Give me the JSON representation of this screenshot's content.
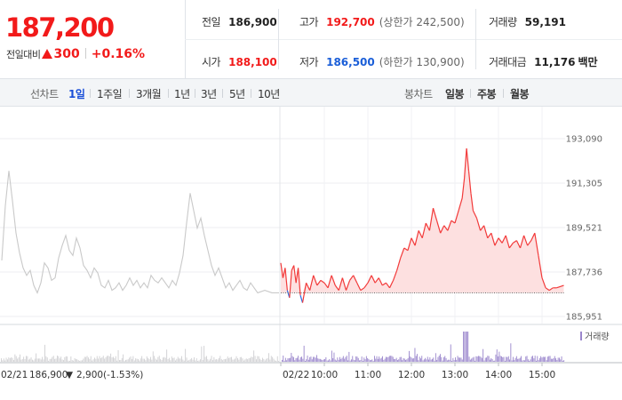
{
  "summary": {
    "current_price": "187,200",
    "change_label": "전일대비",
    "change_abs": "300",
    "change_pct": "+0.16%",
    "prev_close": {
      "label": "전일",
      "value": "186,900"
    },
    "high": {
      "label": "고가",
      "value": "192,700",
      "limit": "(상한가 242,500)"
    },
    "volume": {
      "label": "거래량",
      "value": "59,191"
    },
    "open": {
      "label": "시가",
      "value": "188,100"
    },
    "low": {
      "label": "저가",
      "value": "186,500",
      "limit": "(하한가 130,900)"
    },
    "amount": {
      "label": "거래대금",
      "value": "11,176",
      "unit": "백만"
    }
  },
  "tabs": {
    "line_label": "선차트",
    "line_periods": [
      "1일",
      "1주일",
      "3개월",
      "1년",
      "3년",
      "5년",
      "10년"
    ],
    "selected_index": 0,
    "candle_label": "봉차트",
    "candle_periods": [
      "일봉",
      "주봉",
      "월봉"
    ]
  },
  "chart_data": {
    "type": "line",
    "y_ticks": [
      "193,090",
      "191,305",
      "189,521",
      "187,736",
      "185,951"
    ],
    "ylim": [
      185951,
      193090
    ],
    "prev_close": 186900,
    "x_ticks_today": [
      "02/22",
      "10:00",
      "11:00",
      "12:00",
      "13:00",
      "14:00",
      "15:00"
    ],
    "prev_day": {
      "date": "02/21",
      "close_text": "186,900",
      "change_text": "2,900",
      "pct_text": "(-1.53%)",
      "time_start": "09:00",
      "time_end": "15:30",
      "points": [
        [
          "09:00",
          188200
        ],
        [
          "09:05",
          190400
        ],
        [
          "09:10",
          191800
        ],
        [
          "09:15",
          190600
        ],
        [
          "09:20",
          189300
        ],
        [
          "09:25",
          188500
        ],
        [
          "09:30",
          187900
        ],
        [
          "09:35",
          187600
        ],
        [
          "09:40",
          187800
        ],
        [
          "09:45",
          187200
        ],
        [
          "09:50",
          186900
        ],
        [
          "09:55",
          187300
        ],
        [
          "10:00",
          188100
        ],
        [
          "10:05",
          187900
        ],
        [
          "10:10",
          187400
        ],
        [
          "10:15",
          187500
        ],
        [
          "10:20",
          188300
        ],
        [
          "10:25",
          188800
        ],
        [
          "10:30",
          189200
        ],
        [
          "10:35",
          188600
        ],
        [
          "10:40",
          188400
        ],
        [
          "10:45",
          189100
        ],
        [
          "10:50",
          188700
        ],
        [
          "10:55",
          188000
        ],
        [
          "11:00",
          187800
        ],
        [
          "11:05",
          187500
        ],
        [
          "11:10",
          187900
        ],
        [
          "11:15",
          187700
        ],
        [
          "11:20",
          187200
        ],
        [
          "11:25",
          187100
        ],
        [
          "11:30",
          187400
        ],
        [
          "11:35",
          187000
        ],
        [
          "11:40",
          187100
        ],
        [
          "11:45",
          187300
        ],
        [
          "11:50",
          187000
        ],
        [
          "11:55",
          187200
        ],
        [
          "12:00",
          187500
        ],
        [
          "12:05",
          187200
        ],
        [
          "12:10",
          187400
        ],
        [
          "12:15",
          187100
        ],
        [
          "12:20",
          187300
        ],
        [
          "12:25",
          187100
        ],
        [
          "12:30",
          187600
        ],
        [
          "12:35",
          187400
        ],
        [
          "12:40",
          187300
        ],
        [
          "12:45",
          187500
        ],
        [
          "12:50",
          187300
        ],
        [
          "12:55",
          187100
        ],
        [
          "13:00",
          187400
        ],
        [
          "13:05",
          187200
        ],
        [
          "13:10",
          187700
        ],
        [
          "13:15",
          188400
        ],
        [
          "13:20",
          189700
        ],
        [
          "13:25",
          190900
        ],
        [
          "13:30",
          190200
        ],
        [
          "13:35",
          189500
        ],
        [
          "13:40",
          189900
        ],
        [
          "13:45",
          189200
        ],
        [
          "13:50",
          188600
        ],
        [
          "13:55",
          188000
        ],
        [
          "14:00",
          187600
        ],
        [
          "14:05",
          187900
        ],
        [
          "14:10",
          187500
        ],
        [
          "14:15",
          187100
        ],
        [
          "14:20",
          187300
        ],
        [
          "14:25",
          187000
        ],
        [
          "14:30",
          187200
        ],
        [
          "14:35",
          187400
        ],
        [
          "14:40",
          187100
        ],
        [
          "14:45",
          187000
        ],
        [
          "14:50",
          187300
        ],
        [
          "14:55",
          187100
        ],
        [
          "15:00",
          186900
        ],
        [
          "15:10",
          187000
        ],
        [
          "15:20",
          186900
        ],
        [
          "15:30",
          186900
        ]
      ]
    },
    "today": {
      "date": "02/22",
      "time_start": "09:00",
      "time_end": "15:30",
      "points": [
        [
          "09:00",
          188100
        ],
        [
          "09:03",
          187500
        ],
        [
          "09:06",
          187900
        ],
        [
          "09:09",
          187000
        ],
        [
          "09:12",
          186700
        ],
        [
          "09:15",
          187800
        ],
        [
          "09:18",
          188000
        ],
        [
          "09:21",
          187300
        ],
        [
          "09:24",
          187900
        ],
        [
          "09:27",
          186800
        ],
        [
          "09:30",
          186500
        ],
        [
          "09:35",
          187300
        ],
        [
          "09:40",
          187000
        ],
        [
          "09:45",
          187600
        ],
        [
          "09:50",
          187200
        ],
        [
          "09:55",
          187400
        ],
        [
          "10:00",
          187300
        ],
        [
          "10:05",
          187100
        ],
        [
          "10:10",
          187600
        ],
        [
          "10:15",
          187200
        ],
        [
          "10:20",
          187000
        ],
        [
          "10:25",
          187500
        ],
        [
          "10:30",
          187000
        ],
        [
          "10:35",
          187400
        ],
        [
          "10:40",
          187600
        ],
        [
          "10:45",
          187300
        ],
        [
          "10:50",
          187000
        ],
        [
          "10:55",
          187100
        ],
        [
          "11:00",
          187300
        ],
        [
          "11:05",
          187600
        ],
        [
          "11:10",
          187300
        ],
        [
          "11:15",
          187500
        ],
        [
          "11:20",
          187200
        ],
        [
          "11:25",
          187300
        ],
        [
          "11:30",
          187100
        ],
        [
          "11:35",
          187400
        ],
        [
          "11:40",
          187800
        ],
        [
          "11:45",
          188300
        ],
        [
          "11:50",
          188700
        ],
        [
          "11:55",
          188600
        ],
        [
          "12:00",
          189100
        ],
        [
          "12:05",
          188800
        ],
        [
          "12:10",
          189400
        ],
        [
          "12:15",
          189100
        ],
        [
          "12:20",
          189700
        ],
        [
          "12:25",
          189400
        ],
        [
          "12:30",
          190300
        ],
        [
          "12:35",
          189800
        ],
        [
          "12:40",
          189300
        ],
        [
          "12:45",
          189600
        ],
        [
          "12:50",
          189400
        ],
        [
          "12:55",
          189800
        ],
        [
          "13:00",
          189700
        ],
        [
          "13:05",
          190200
        ],
        [
          "13:10",
          190700
        ],
        [
          "13:13",
          191500
        ],
        [
          "13:16",
          192700
        ],
        [
          "13:19",
          191800
        ],
        [
          "13:22",
          190900
        ],
        [
          "13:25",
          190200
        ],
        [
          "13:30",
          189900
        ],
        [
          "13:35",
          189400
        ],
        [
          "13:40",
          189600
        ],
        [
          "13:45",
          189100
        ],
        [
          "13:50",
          189300
        ],
        [
          "13:55",
          188800
        ],
        [
          "14:00",
          189100
        ],
        [
          "14:05",
          188900
        ],
        [
          "14:10",
          189200
        ],
        [
          "14:15",
          188700
        ],
        [
          "14:20",
          188900
        ],
        [
          "14:25",
          189000
        ],
        [
          "14:30",
          188700
        ],
        [
          "14:35",
          189200
        ],
        [
          "14:40",
          188800
        ],
        [
          "14:45",
          189000
        ],
        [
          "14:50",
          189300
        ],
        [
          "14:55",
          188400
        ],
        [
          "15:00",
          187500
        ],
        [
          "15:05",
          187100
        ],
        [
          "15:10",
          187000
        ],
        [
          "15:15",
          187100
        ],
        [
          "15:20",
          187100
        ],
        [
          "15:30",
          187200
        ]
      ]
    },
    "volume_label": "거래량",
    "colors": {
      "today_line": "#f23a3a",
      "today_fill": "#fde0e0",
      "below_prev": "#2b6be3",
      "prev_day_line": "#c9c9c9",
      "volume": "#9a86cc",
      "prev_volume": "#cfcfd2"
    }
  }
}
